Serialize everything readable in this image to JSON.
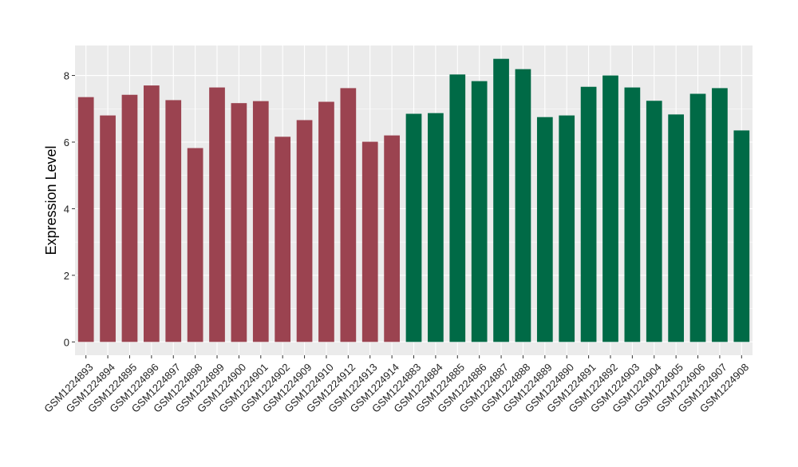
{
  "chart_data": {
    "type": "bar",
    "title": "",
    "xlabel": "",
    "ylabel": "Expression Level",
    "ylim": [
      -0.4,
      8.9
    ],
    "yticks": [
      0,
      2,
      4,
      6,
      8
    ],
    "grid": true,
    "colors": {
      "group1": "#9B4350",
      "group2": "#006A46",
      "panel_bg": "#EBEBEB",
      "grid": "#FFFFFF"
    },
    "categories": [
      "GSM1224893",
      "GSM1224894",
      "GSM1224895",
      "GSM1224896",
      "GSM1224897",
      "GSM1224898",
      "GSM1224899",
      "GSM1224900",
      "GSM1224901",
      "GSM1224902",
      "GSM1224909",
      "GSM1224910",
      "GSM1224912",
      "GSM1224913",
      "GSM1224914",
      "GSM1224883",
      "GSM1224884",
      "GSM1224885",
      "GSM1224886",
      "GSM1224887",
      "GSM1224888",
      "GSM1224889",
      "GSM1224890",
      "GSM1224891",
      "GSM1224892",
      "GSM1224903",
      "GSM1224904",
      "GSM1224905",
      "GSM1224906",
      "GSM1224907",
      "GSM1224908"
    ],
    "values": [
      7.35,
      6.8,
      7.42,
      7.7,
      7.26,
      5.82,
      7.64,
      7.17,
      7.23,
      6.16,
      6.66,
      7.21,
      7.62,
      6.01,
      6.2,
      6.85,
      6.87,
      8.03,
      7.83,
      8.5,
      8.19,
      6.75,
      6.8,
      7.66,
      8.0,
      7.64,
      7.24,
      6.83,
      7.45,
      7.62,
      6.35
    ],
    "groups": [
      1,
      1,
      1,
      1,
      1,
      1,
      1,
      1,
      1,
      1,
      1,
      1,
      1,
      1,
      1,
      2,
      2,
      2,
      2,
      2,
      2,
      2,
      2,
      2,
      2,
      2,
      2,
      2,
      2,
      2,
      2
    ]
  }
}
